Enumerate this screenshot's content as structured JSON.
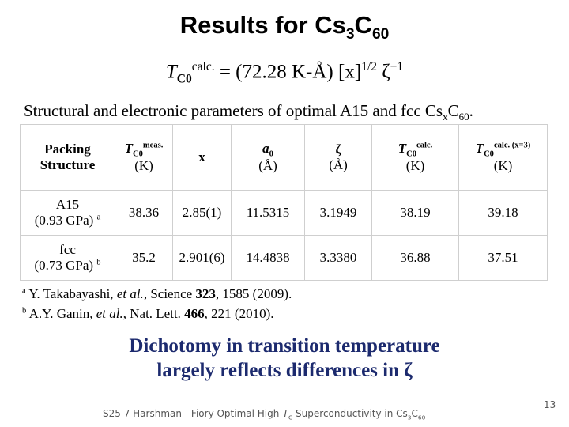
{
  "title": [
    "Results for Cs",
    "3",
    "C",
    "60"
  ],
  "formula": [
    "T",
    "C0",
    "calc.",
    "= (72.28 K-Å) [x]",
    "1/2",
    "ζ",
    "−1"
  ],
  "table": {
    "caption": [
      "Structural and electronic parameters of optimal A15 and fcc Cs",
      "x",
      "C",
      "60",
      "."
    ],
    "header": [
      [
        "Packing",
        "Structure"
      ],
      [
        "T",
        "C0",
        "meas.",
        "(K)"
      ],
      [
        "x"
      ],
      [
        "a",
        "0",
        "(Å)"
      ],
      [
        "ζ",
        "(Å)"
      ],
      [
        "T",
        "C0",
        "calc.",
        "(K)"
      ],
      [
        "T",
        "C0",
        "calc. (x=3)",
        "(K)"
      ]
    ],
    "rows": [
      [
        [
          "A15",
          "(0.93 GPa)",
          "a"
        ],
        "38.36",
        "2.85(1)",
        "11.5315",
        "3.1949",
        "38.19",
        "39.18"
      ],
      [
        [
          "fcc",
          "(0.73 GPa)",
          "b"
        ],
        "35.2",
        "2.901(6)",
        "14.4838",
        "3.3380",
        "36.88",
        "37.51"
      ]
    ]
  },
  "footnotes": [
    [
      "a",
      "Y. Takabayashi, ",
      "et al.",
      ", Science ",
      "323",
      ", 1585 (2009)."
    ],
    [
      "b",
      "A.Y. Ganin, ",
      "et al.",
      ", Nat. Lett. ",
      "466",
      ", 221 (2010)."
    ]
  ],
  "conclusion": [
    "Dichotomy in transition temperature",
    "largely reflects differences in ζ"
  ],
  "footer": [
    "S25 7 Harshman - Fiory Optimal High-",
    "T",
    "C",
    " Superconductivity in Cs",
    "3",
    "C",
    "60"
  ],
  "page_number": "13"
}
